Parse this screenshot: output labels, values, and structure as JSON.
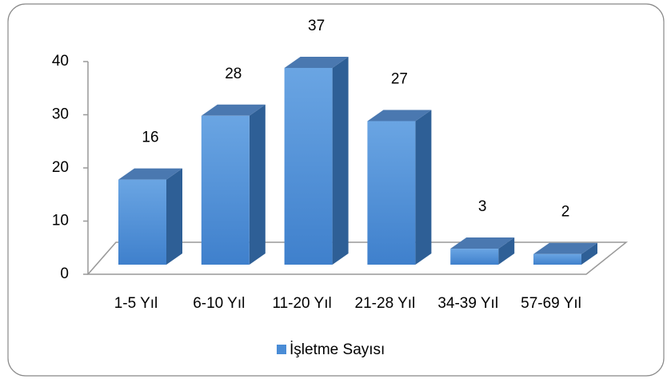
{
  "chart_data": {
    "type": "bar3d",
    "categories": [
      "1-5 Yıl",
      "6-10 Yıl",
      "11-20 Yıl",
      "21-28 Yıl",
      "34-39 Yıl",
      "57-69 Yıl"
    ],
    "series": [
      {
        "name": "İşletme Sayısı",
        "color": "#4a8cd6",
        "values": [
          16,
          28,
          37,
          27,
          3,
          2
        ]
      }
    ],
    "ylim": [
      0,
      40
    ],
    "yticks": [
      0,
      10,
      20,
      30,
      40
    ],
    "legend": "bottom"
  }
}
